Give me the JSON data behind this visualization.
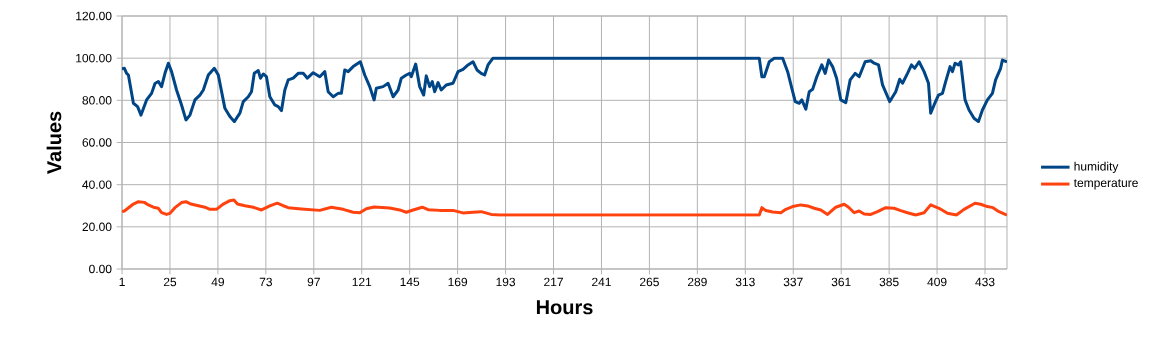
{
  "chart_data": {
    "type": "line",
    "xlabel": "Hours",
    "ylabel": "Values",
    "xlim": [
      1,
      444
    ],
    "xticks": [
      1,
      25,
      49,
      73,
      97,
      121,
      145,
      169,
      193,
      217,
      241,
      265,
      289,
      313,
      337,
      361,
      385,
      409,
      433
    ],
    "ylim": [
      0,
      120
    ],
    "yticks": [
      {
        "value": 0,
        "label": "0.00"
      },
      {
        "value": 20,
        "label": "20.00"
      },
      {
        "value": 40,
        "label": "40.00"
      },
      {
        "value": 60,
        "label": "60.00"
      },
      {
        "value": 80,
        "label": "80.00"
      },
      {
        "value": 100,
        "label": "100.00"
      },
      {
        "value": 120,
        "label": "120.00"
      }
    ],
    "grid": true,
    "legend": "right",
    "series": [
      {
        "name": "humidity",
        "color": "#004586",
        "x": [
          1,
          2.2,
          3.3,
          4.2,
          6.7,
          8.8,
          10.5,
          13.3,
          15.8,
          17.5,
          19.2,
          20.8,
          22.5,
          24.2,
          25.8,
          28.3,
          30.8,
          33,
          35,
          37.5,
          40,
          41.7,
          44.2,
          47.2,
          49.2,
          52.5,
          55,
          57.2,
          60,
          61.7,
          64.2,
          65.8,
          67.2,
          69.2,
          70.3,
          71.7,
          73.3,
          75,
          77.5,
          79.2,
          80.8,
          82.5,
          84.2,
          86.7,
          89.2,
          91.7,
          93.8,
          96.7,
          100,
          102.5,
          104.2,
          106.7,
          109.2,
          110.8,
          112.5,
          114.2,
          116.7,
          120.3,
          122.5,
          125,
          127.2,
          128.3,
          131.7,
          134.2,
          136.7,
          139.2,
          140.8,
          143.3,
          145,
          145.8,
          148,
          150,
          152,
          153.3,
          155,
          156.3,
          157.5,
          159.2,
          160.8,
          163.3,
          166.7,
          169.2,
          171.7,
          174.2,
          176.7,
          178.7,
          180.8,
          182.5,
          184.2,
          186.7,
          320,
          321.3,
          322.5,
          325,
          327.5,
          331.7,
          334.2,
          336.3,
          338,
          340,
          341.3,
          343.3,
          345,
          346.7,
          348.8,
          351.3,
          353,
          354.7,
          356.7,
          358.7,
          360.8,
          363.3,
          365.5,
          368,
          370,
          373,
          375.8,
          377.5,
          379.7,
          381.7,
          385.3,
          388.3,
          390.3,
          391.7,
          394.2,
          396.2,
          397.8,
          400,
          402.5,
          404.7,
          405.8,
          407.5,
          409.7,
          411.7,
          413.3,
          415.5,
          416.7,
          418,
          419.7,
          420.8,
          423,
          425,
          427.5,
          429.7,
          431.7,
          434.2,
          436.7,
          438.3,
          440.8,
          441.7,
          444
        ],
        "values": [
          95,
          95.2,
          92.8,
          92,
          78.6,
          77,
          73,
          80.2,
          83.3,
          88,
          88.9,
          86.5,
          92.8,
          97.6,
          93.6,
          84.9,
          77.8,
          70.7,
          73,
          80.2,
          82.5,
          84.9,
          92,
          95.2,
          92,
          76.2,
          72.3,
          69.9,
          73.9,
          79.4,
          81.7,
          84.1,
          92.8,
          94.1,
          90.5,
          92.5,
          91.2,
          81.7,
          77.8,
          77,
          75.1,
          84.9,
          89.7,
          90.5,
          92.8,
          92.8,
          90.5,
          93.1,
          91.2,
          93.6,
          84.1,
          81.7,
          83.3,
          83.3,
          94.4,
          93.6,
          96,
          98.3,
          92,
          86.5,
          80.2,
          85.7,
          86.5,
          88.1,
          81.7,
          84.9,
          90.5,
          92,
          92.8,
          91.2,
          97.2,
          86.5,
          82.5,
          91.6,
          86.5,
          88.9,
          84.1,
          88.4,
          84.9,
          87.3,
          88.1,
          93.6,
          94.7,
          96.8,
          98.3,
          94.4,
          92.8,
          92,
          96.8,
          100,
          100,
          91.2,
          91.2,
          98.3,
          100,
          100,
          93.6,
          85.7,
          79.4,
          78.6,
          80.2,
          75.8,
          84.1,
          85.2,
          91.2,
          96.8,
          92.8,
          99.1,
          96,
          90.5,
          80.2,
          78.9,
          89.7,
          92.8,
          91.2,
          98.3,
          98.8,
          97.6,
          96.8,
          87.3,
          79.4,
          84.1,
          90,
          88.1,
          92.8,
          96.8,
          95.2,
          98.3,
          93.6,
          88.1,
          73.9,
          77.8,
          82.5,
          83.3,
          88.9,
          96,
          93.6,
          97.6,
          96.8,
          98.3,
          80.2,
          75.4,
          71.5,
          69.9,
          75.4,
          80.2,
          83.3,
          89.7,
          95.2,
          99.1,
          98.3
        ]
      },
      {
        "name": "temperature",
        "color": "#ff420e",
        "x": [
          1,
          2.2,
          6.7,
          9.2,
          12.2,
          14.2,
          16.7,
          19.2,
          20.8,
          23.3,
          25,
          27.5,
          30.8,
          33,
          35.5,
          39.2,
          42.5,
          45,
          48.3,
          51.7,
          55,
          57,
          58.8,
          62.5,
          66.7,
          70.8,
          75,
          78.7,
          81.7,
          84.2,
          90.8,
          100,
          105.8,
          111.7,
          116.7,
          120,
          123.3,
          127.2,
          135,
          140,
          143.3,
          146.7,
          151.3,
          154.2,
          160,
          166.7,
          171.7,
          176.7,
          180.8,
          185.8,
          190,
          320,
          321.3,
          323.3,
          326.7,
          330.8,
          333.3,
          336.7,
          340.8,
          344.2,
          347.5,
          350.8,
          354.2,
          358.3,
          362.5,
          364.7,
          367.5,
          370,
          372.5,
          375.8,
          379.2,
          383.3,
          387.5,
          390.8,
          394.2,
          398.3,
          402.5,
          405.8,
          410,
          414.2,
          418.7,
          422.5,
          428,
          430.8,
          434.2,
          437,
          440,
          444
        ],
        "values": [
          27.3,
          27.5,
          30.8,
          31.9,
          31.6,
          30.4,
          29.3,
          28.8,
          26.7,
          25.9,
          26.4,
          29.1,
          31.5,
          31.9,
          30.8,
          30,
          29.3,
          28.3,
          28.3,
          30.8,
          32.4,
          32.7,
          30.8,
          30,
          29.3,
          28,
          29.9,
          31.2,
          30,
          29.1,
          28.5,
          27.8,
          29.3,
          28.3,
          26.9,
          26.7,
          28.6,
          29.4,
          28.9,
          28,
          26.9,
          28,
          29.3,
          28.1,
          27.8,
          27.8,
          26.6,
          26.9,
          27.2,
          25.9,
          25.6,
          25.6,
          29.1,
          27.7,
          27,
          26.7,
          28.3,
          29.6,
          30.4,
          29.9,
          28.8,
          28,
          25.9,
          29.3,
          30.7,
          29.3,
          26.7,
          27.5,
          26.1,
          25.9,
          27.2,
          29.1,
          28.8,
          27.7,
          26.7,
          25.6,
          26.7,
          30.4,
          28.8,
          26.4,
          25.6,
          28.3,
          31.2,
          30.7,
          29.6,
          29.1,
          27.2,
          25.6
        ]
      }
    ]
  }
}
